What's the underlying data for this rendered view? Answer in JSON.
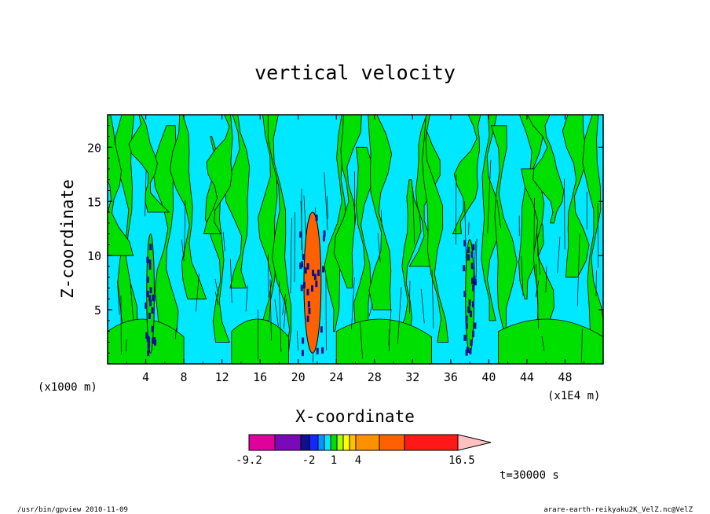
{
  "chart_data": {
    "type": "heatmap",
    "title": "vertical velocity",
    "xlabel": "X-coordinate",
    "ylabel": "Z-coordinate",
    "x_unit_label": "(x1E4 m)",
    "y_unit_label": "(x1000 m)",
    "xlim": [
      0,
      52
    ],
    "ylim": [
      0,
      23
    ],
    "x_ticks": [
      "4",
      "8",
      "12",
      "16",
      "20",
      "24",
      "28",
      "32",
      "36",
      "40",
      "44",
      "48"
    ],
    "y_ticks": [
      "5",
      "10",
      "15",
      "20"
    ],
    "colorbar": {
      "labels": [
        "-9.2",
        "-2",
        "1",
        "4",
        "16.5"
      ],
      "colors": [
        "#e0009c",
        "#7a0ab8",
        "#101090",
        "#1428ff",
        "#0098ff",
        "#00e8ff",
        "#00e000",
        "#a8ff00",
        "#ffff00",
        "#ffc000",
        "#ff9000",
        "#ff6000",
        "#ff1818",
        "#ff7878",
        "#ffc0c0"
      ]
    },
    "field_colors": {
      "background": "#00e8ff",
      "updraft_weak": "#00e000",
      "core_strong": "#ff6000",
      "core_negative": "#101090"
    },
    "annotation": "t=30000 s"
  },
  "footer": {
    "left": "/usr/bin/gpview   2010-11-09",
    "right": "arare-earth-reikyaku2K_VelZ.nc@VelZ"
  }
}
